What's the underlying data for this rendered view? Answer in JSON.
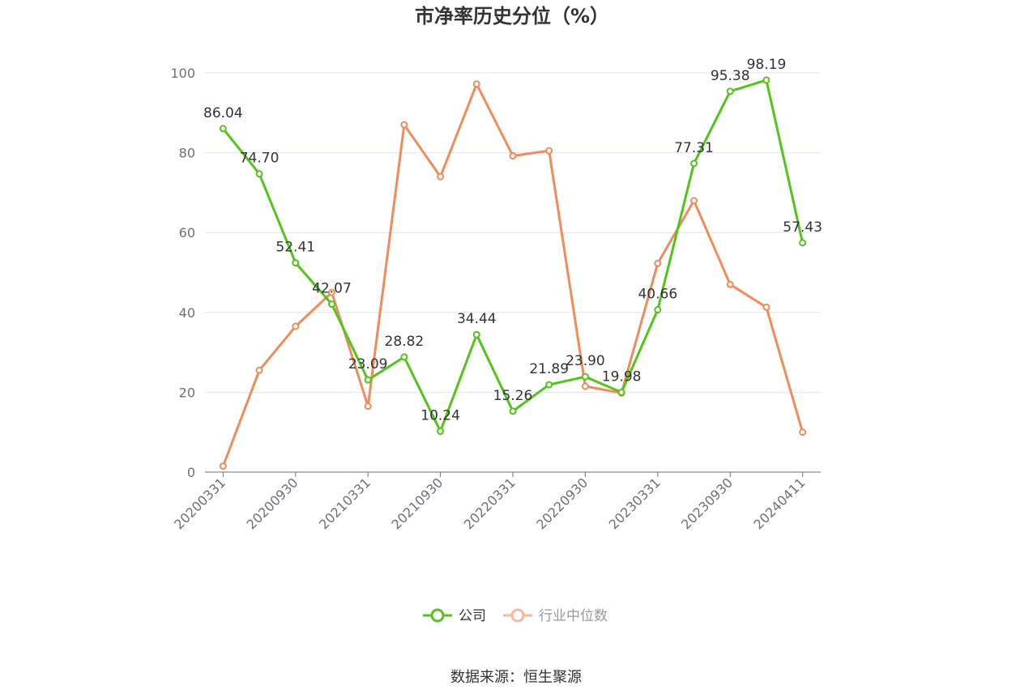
{
  "chart_data": {
    "type": "line",
    "title": "市净率历史分位（%）",
    "x": [
      "20200331",
      "20200630",
      "20200930",
      "20201231",
      "20210331",
      "20210630",
      "20210930",
      "20211231",
      "20220331",
      "20220630",
      "20220930",
      "20221231",
      "20230331",
      "20230630",
      "20230930",
      "20231231",
      "20240411"
    ],
    "x_tick_labels": [
      "20200331",
      "20200930",
      "20210331",
      "20210930",
      "20220331",
      "20220930",
      "20230331",
      "20230930",
      "20240411"
    ],
    "ylim": [
      0,
      100
    ],
    "y_ticks": [
      0,
      20,
      40,
      60,
      80,
      100
    ],
    "grid": true,
    "legend_position": "bottom-center",
    "series": [
      {
        "name": "公司",
        "color": "#52c41a",
        "values": [
          86.04,
          74.7,
          52.41,
          42.07,
          23.09,
          28.82,
          10.24,
          34.44,
          15.26,
          21.89,
          23.9,
          19.98,
          40.66,
          77.31,
          95.38,
          98.19,
          57.43
        ],
        "labels": [
          "86.04",
          "74.70",
          "52.41",
          "42.07",
          "23.09",
          "28.82",
          "10.24",
          "34.44",
          "15.26",
          "21.89",
          "23.90",
          "19.98",
          "40.66",
          "77.31",
          "95.38",
          "98.19",
          "57.43"
        ]
      },
      {
        "name": "行业中位数",
        "color": "#f08c5a",
        "values": [
          1.5,
          25.5,
          36.5,
          45.0,
          16.5,
          87.0,
          74.0,
          97.2,
          79.2,
          80.5,
          21.5,
          19.8,
          52.3,
          68.0,
          47.0,
          41.3,
          10.0
        ]
      }
    ],
    "source": "数据来源：恒生聚源"
  }
}
